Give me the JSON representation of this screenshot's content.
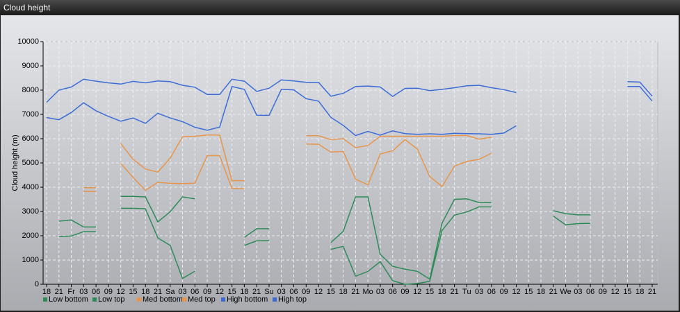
{
  "title": "Cloud height",
  "chart_data": {
    "type": "line",
    "y_label": "Cloud height (m)",
    "categories": [
      "18",
      "21",
      "Fr",
      "03",
      "06",
      "09",
      "12",
      "15",
      "18",
      "21",
      "Sa",
      "03",
      "06",
      "09",
      "12",
      "15",
      "18",
      "21",
      "Su",
      "03",
      "06",
      "09",
      "12",
      "15",
      "18",
      "21",
      "Mo",
      "03",
      "06",
      "09",
      "12",
      "15",
      "18",
      "21",
      "Tu",
      "03",
      "06",
      "09",
      "12",
      "15",
      "18",
      "21",
      "We",
      "03",
      "06",
      "09",
      "12",
      "15",
      "18",
      "21"
    ],
    "ylim": [
      0,
      10000
    ],
    "yticks": [
      0,
      1000,
      2000,
      3000,
      4000,
      5000,
      6000,
      7000,
      8000,
      9000,
      10000
    ],
    "grid": true,
    "series": [
      {
        "name": "Low bottom",
        "color": "#2e8b57",
        "values": [
          null,
          1960,
          1990,
          2170,
          2170,
          null,
          3130,
          3130,
          3110,
          1910,
          1600,
          240,
          540,
          null,
          null,
          null,
          1600,
          1790,
          1800,
          null,
          null,
          null,
          null,
          1440,
          1560,
          330,
          530,
          930,
          150,
          0,
          30,
          120,
          2220,
          2850,
          2980,
          3190,
          3190,
          null,
          null,
          null,
          null,
          2810,
          2450,
          2500,
          2510,
          null,
          null,
          null,
          null,
          null
        ]
      },
      {
        "name": "Low top",
        "color": "#2e8b57",
        "values": [
          null,
          2600,
          2650,
          2360,
          2360,
          null,
          3620,
          3620,
          3600,
          2570,
          2990,
          3600,
          3520,
          null,
          null,
          null,
          1930,
          2290,
          2290,
          null,
          null,
          null,
          null,
          1720,
          2180,
          3600,
          3600,
          1230,
          740,
          620,
          530,
          210,
          2520,
          3500,
          3520,
          3370,
          3360,
          null,
          null,
          null,
          null,
          3030,
          2910,
          2860,
          2860,
          null,
          null,
          null,
          null,
          null
        ]
      },
      {
        "name": "Med bottom",
        "color": "#e8954a",
        "values": [
          null,
          null,
          null,
          3820,
          3820,
          null,
          4980,
          4400,
          3870,
          4200,
          4160,
          4150,
          4170,
          5300,
          5300,
          3950,
          3930,
          null,
          null,
          null,
          null,
          5780,
          5770,
          5450,
          5470,
          4330,
          4100,
          5370,
          5500,
          5960,
          5570,
          4440,
          4030,
          4870,
          5060,
          5150,
          5400,
          null,
          null,
          null,
          null,
          null,
          null,
          null,
          null,
          null,
          null,
          null,
          null,
          null
        ]
      },
      {
        "name": "Med top",
        "color": "#e8954a",
        "values": [
          null,
          null,
          null,
          3980,
          3980,
          null,
          5800,
          5150,
          4750,
          4620,
          5200,
          6080,
          6100,
          6150,
          6150,
          4270,
          4270,
          null,
          null,
          null,
          null,
          6120,
          6120,
          5960,
          6000,
          5630,
          5720,
          6100,
          6100,
          6100,
          6100,
          6100,
          6100,
          6130,
          6130,
          5980,
          6060,
          null,
          null,
          null,
          null,
          null,
          null,
          null,
          null,
          null,
          null,
          null,
          null,
          null
        ]
      },
      {
        "name": "High bottom",
        "color": "#3b6bd6",
        "values": [
          6870,
          6780,
          7080,
          7480,
          7150,
          6920,
          6720,
          6850,
          6630,
          7050,
          6850,
          6700,
          6470,
          6350,
          6480,
          8150,
          8030,
          6970,
          6960,
          8030,
          8010,
          7650,
          7550,
          6880,
          6550,
          6130,
          6300,
          6150,
          6320,
          6210,
          6180,
          6200,
          6180,
          6220,
          6210,
          6200,
          6180,
          6230,
          6530,
          null,
          null,
          null,
          null,
          null,
          null,
          null,
          null,
          8150,
          8150,
          7550
        ]
      },
      {
        "name": "High top",
        "color": "#3b6bd6",
        "values": [
          7500,
          8000,
          8130,
          8450,
          8370,
          8300,
          8250,
          8360,
          8300,
          8380,
          8350,
          8200,
          8120,
          7820,
          7820,
          8450,
          8370,
          7950,
          8080,
          8420,
          8380,
          8320,
          8320,
          7750,
          7870,
          8150,
          8170,
          8130,
          7740,
          8070,
          8080,
          7980,
          8030,
          8100,
          8180,
          8200,
          8100,
          8020,
          7900,
          null,
          null,
          null,
          null,
          null,
          null,
          null,
          null,
          8350,
          8330,
          7750
        ]
      }
    ]
  }
}
